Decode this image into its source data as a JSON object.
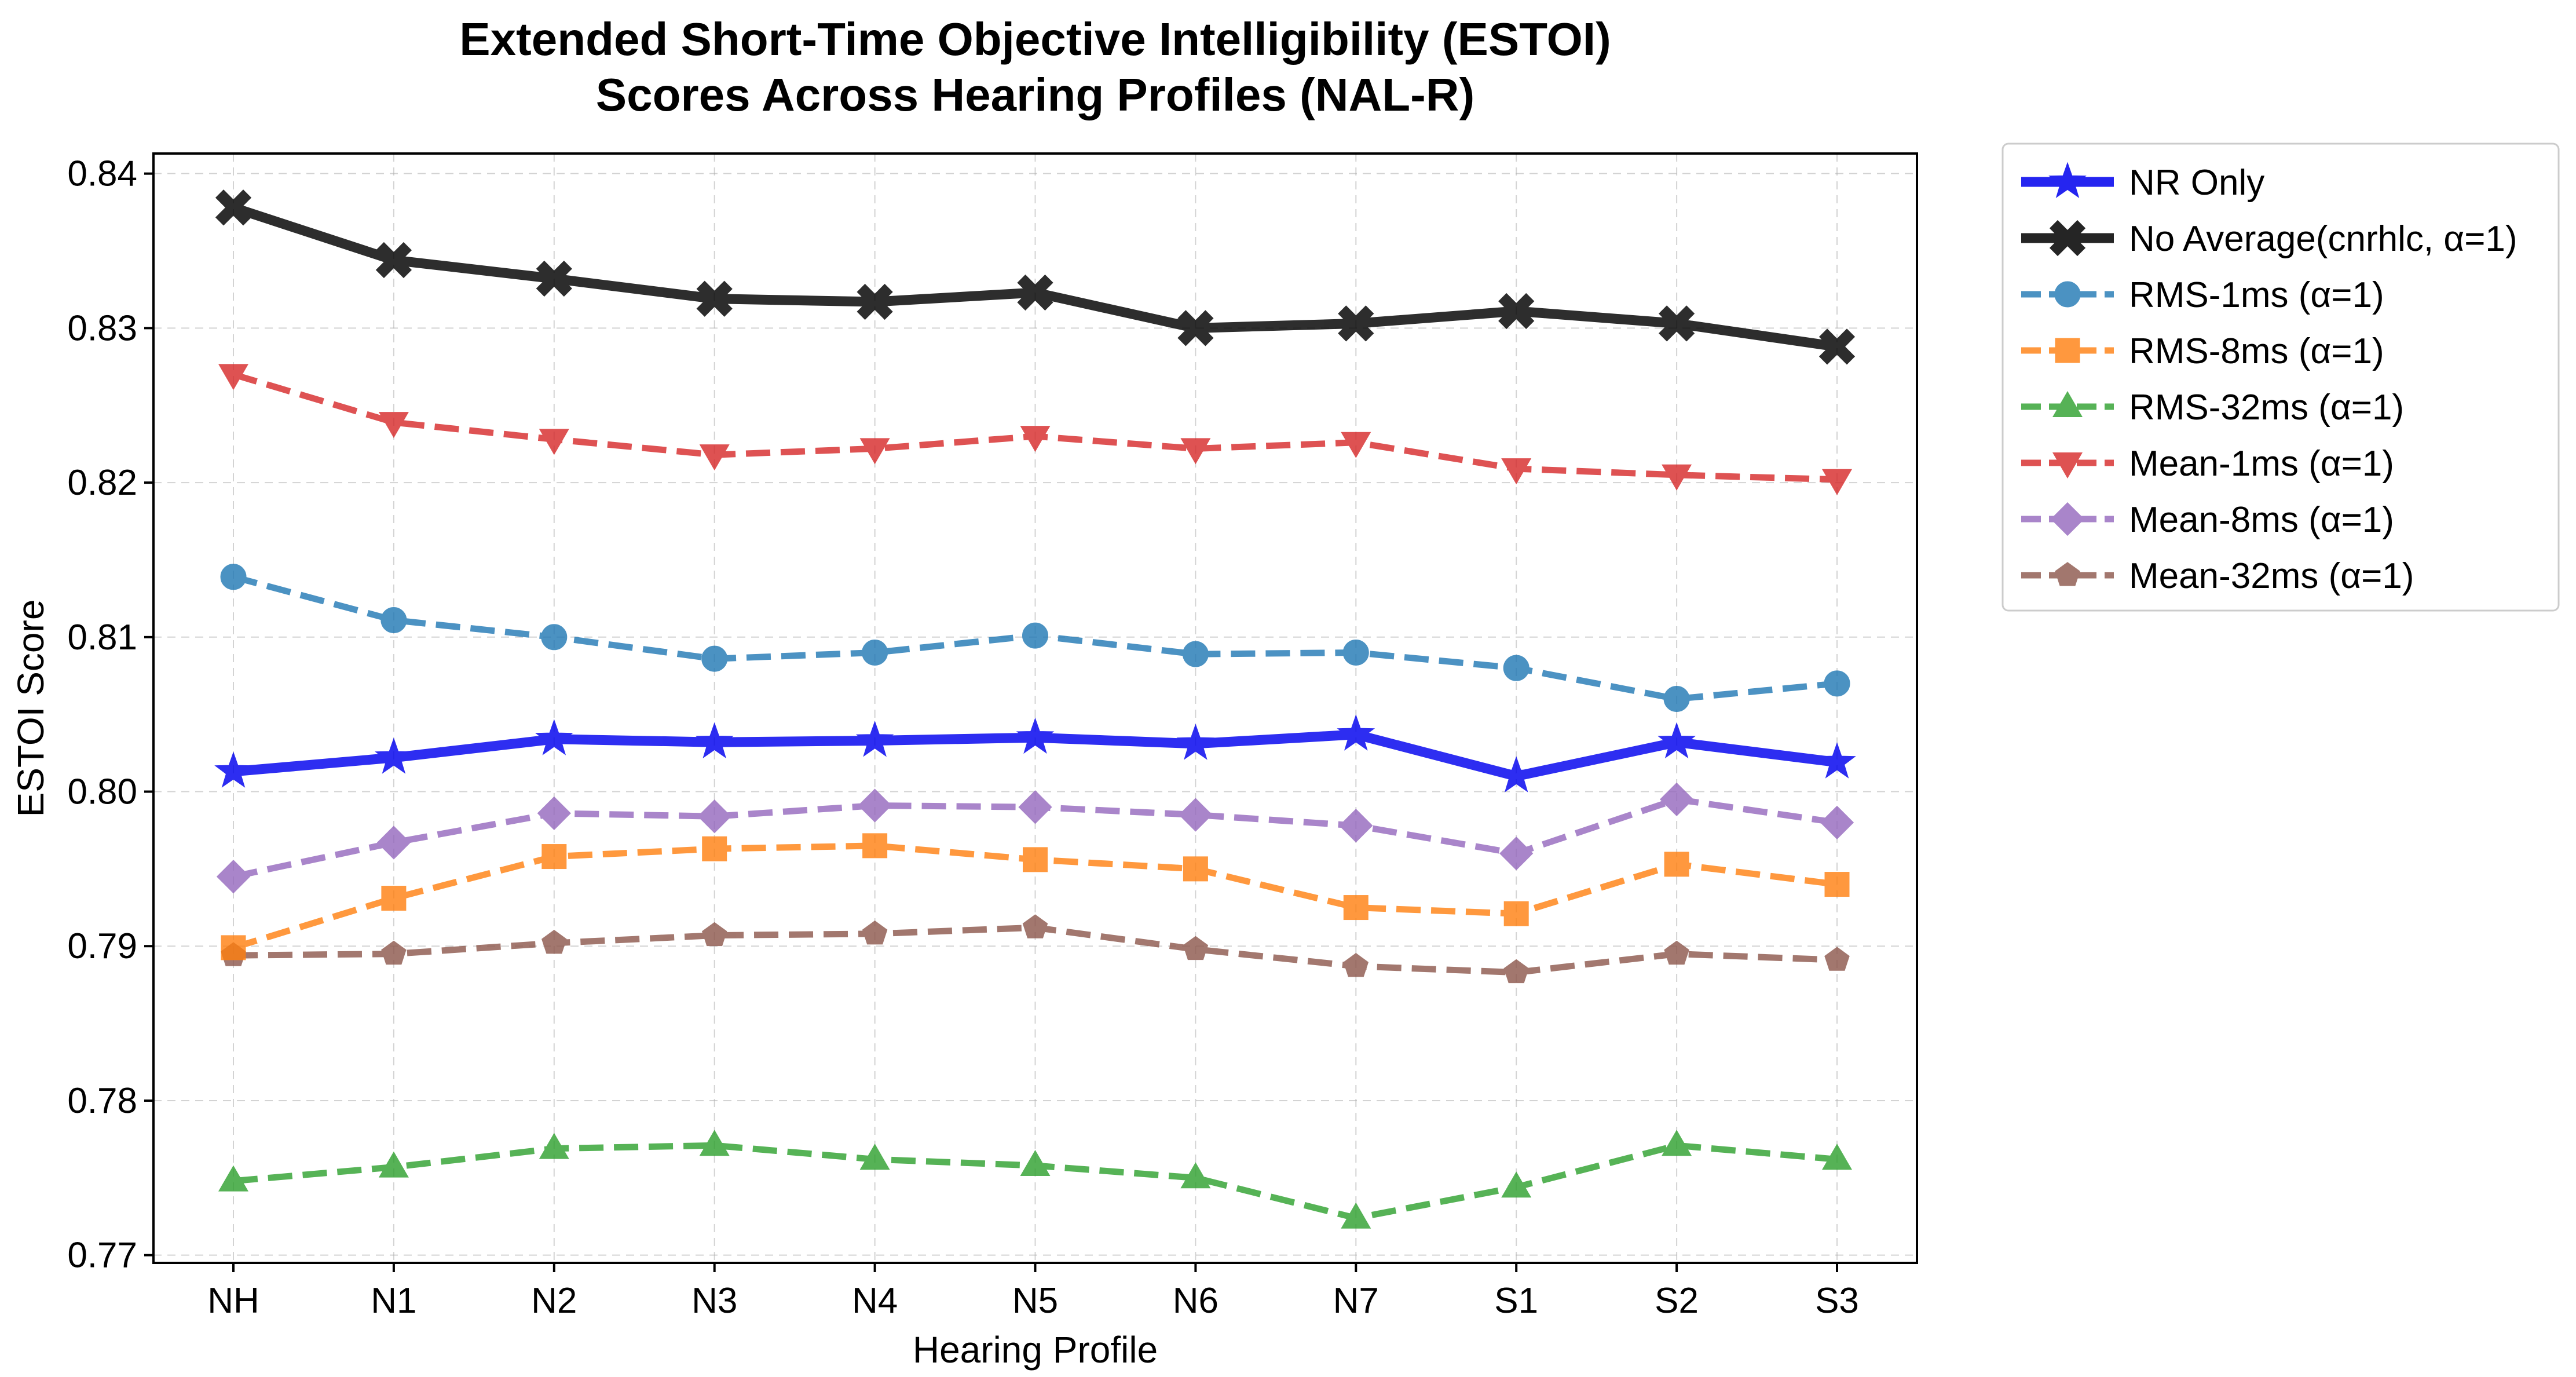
{
  "chart_data": {
    "type": "line",
    "title": [
      "Extended Short-Time Objective Intelligibility (ESTOI)",
      "Scores Across Hearing Profiles (NAL-R)"
    ],
    "xlabel": "Hearing Profile",
    "ylabel": "ESTOI Score",
    "categories": [
      "NH",
      "N1",
      "N2",
      "N3",
      "N4",
      "N5",
      "N6",
      "N7",
      "S1",
      "S2",
      "S3"
    ],
    "ylim": [
      0.7695,
      0.8413
    ],
    "yticks": [
      0.77,
      0.78,
      0.79,
      0.8,
      0.81,
      0.82,
      0.83,
      0.84
    ],
    "ytick_labels": [
      "0.77",
      "0.78",
      "0.79",
      "0.80",
      "0.81",
      "0.82",
      "0.83",
      "0.84"
    ],
    "grid": true,
    "legend_position": "outside-right-top",
    "series": [
      {
        "name": "NR Only",
        "color": "#0000ee",
        "marker": "star",
        "dash": "solid",
        "width": "thick",
        "values": [
          0.8013,
          0.8022,
          0.8034,
          0.8032,
          0.8033,
          0.8035,
          0.8031,
          0.8037,
          0.801,
          0.8032,
          0.8019
        ]
      },
      {
        "name": "No Average(cnrhlc, α=1)",
        "color": "#000000",
        "marker": "x",
        "dash": "solid",
        "width": "thick",
        "values": [
          0.8378,
          0.8344,
          0.8332,
          0.8319,
          0.8317,
          0.8323,
          0.83,
          0.8303,
          0.8311,
          0.8303,
          0.8288
        ]
      },
      {
        "name": "RMS-1ms (α=1)",
        "color": "#1f77b4",
        "marker": "circle",
        "dash": "dashed",
        "width": "normal",
        "values": [
          0.8139,
          0.8111,
          0.81,
          0.8086,
          0.809,
          0.8101,
          0.8089,
          0.809,
          0.808,
          0.806,
          0.807
        ]
      },
      {
        "name": "RMS-8ms (α=1)",
        "color": "#ff7f0e",
        "marker": "square",
        "dash": "dashed",
        "width": "normal",
        "values": [
          0.7899,
          0.7931,
          0.7958,
          0.7963,
          0.7965,
          0.7956,
          0.795,
          0.7925,
          0.7921,
          0.7953,
          0.794
        ]
      },
      {
        "name": "RMS-32ms (α=1)",
        "color": "#2ca02c",
        "marker": "triangle-up",
        "dash": "dashed",
        "width": "normal",
        "values": [
          0.7748,
          0.7757,
          0.7769,
          0.7771,
          0.7762,
          0.7758,
          0.775,
          0.7724,
          0.7744,
          0.7771,
          0.7762
        ]
      },
      {
        "name": "Mean-1ms (α=1)",
        "color": "#d62728",
        "marker": "triangle-down",
        "dash": "dashed",
        "width": "normal",
        "values": [
          0.827,
          0.8239,
          0.8228,
          0.8218,
          0.8222,
          0.823,
          0.8222,
          0.8226,
          0.8209,
          0.8205,
          0.8202
        ]
      },
      {
        "name": "Mean-8ms (α=1)",
        "color": "#9467bd",
        "marker": "diamond",
        "dash": "dashed",
        "width": "normal",
        "values": [
          0.7945,
          0.7967,
          0.7986,
          0.7984,
          0.7991,
          0.799,
          0.7985,
          0.7978,
          0.796,
          0.7995,
          0.798
        ]
      },
      {
        "name": "Mean-32ms (α=1)",
        "color": "#8c564b",
        "marker": "pentagon",
        "dash": "dashed",
        "width": "normal",
        "values": [
          0.7894,
          0.7895,
          0.7902,
          0.7907,
          0.7908,
          0.7912,
          0.7898,
          0.7887,
          0.7883,
          0.7895,
          0.7891
        ]
      }
    ]
  }
}
